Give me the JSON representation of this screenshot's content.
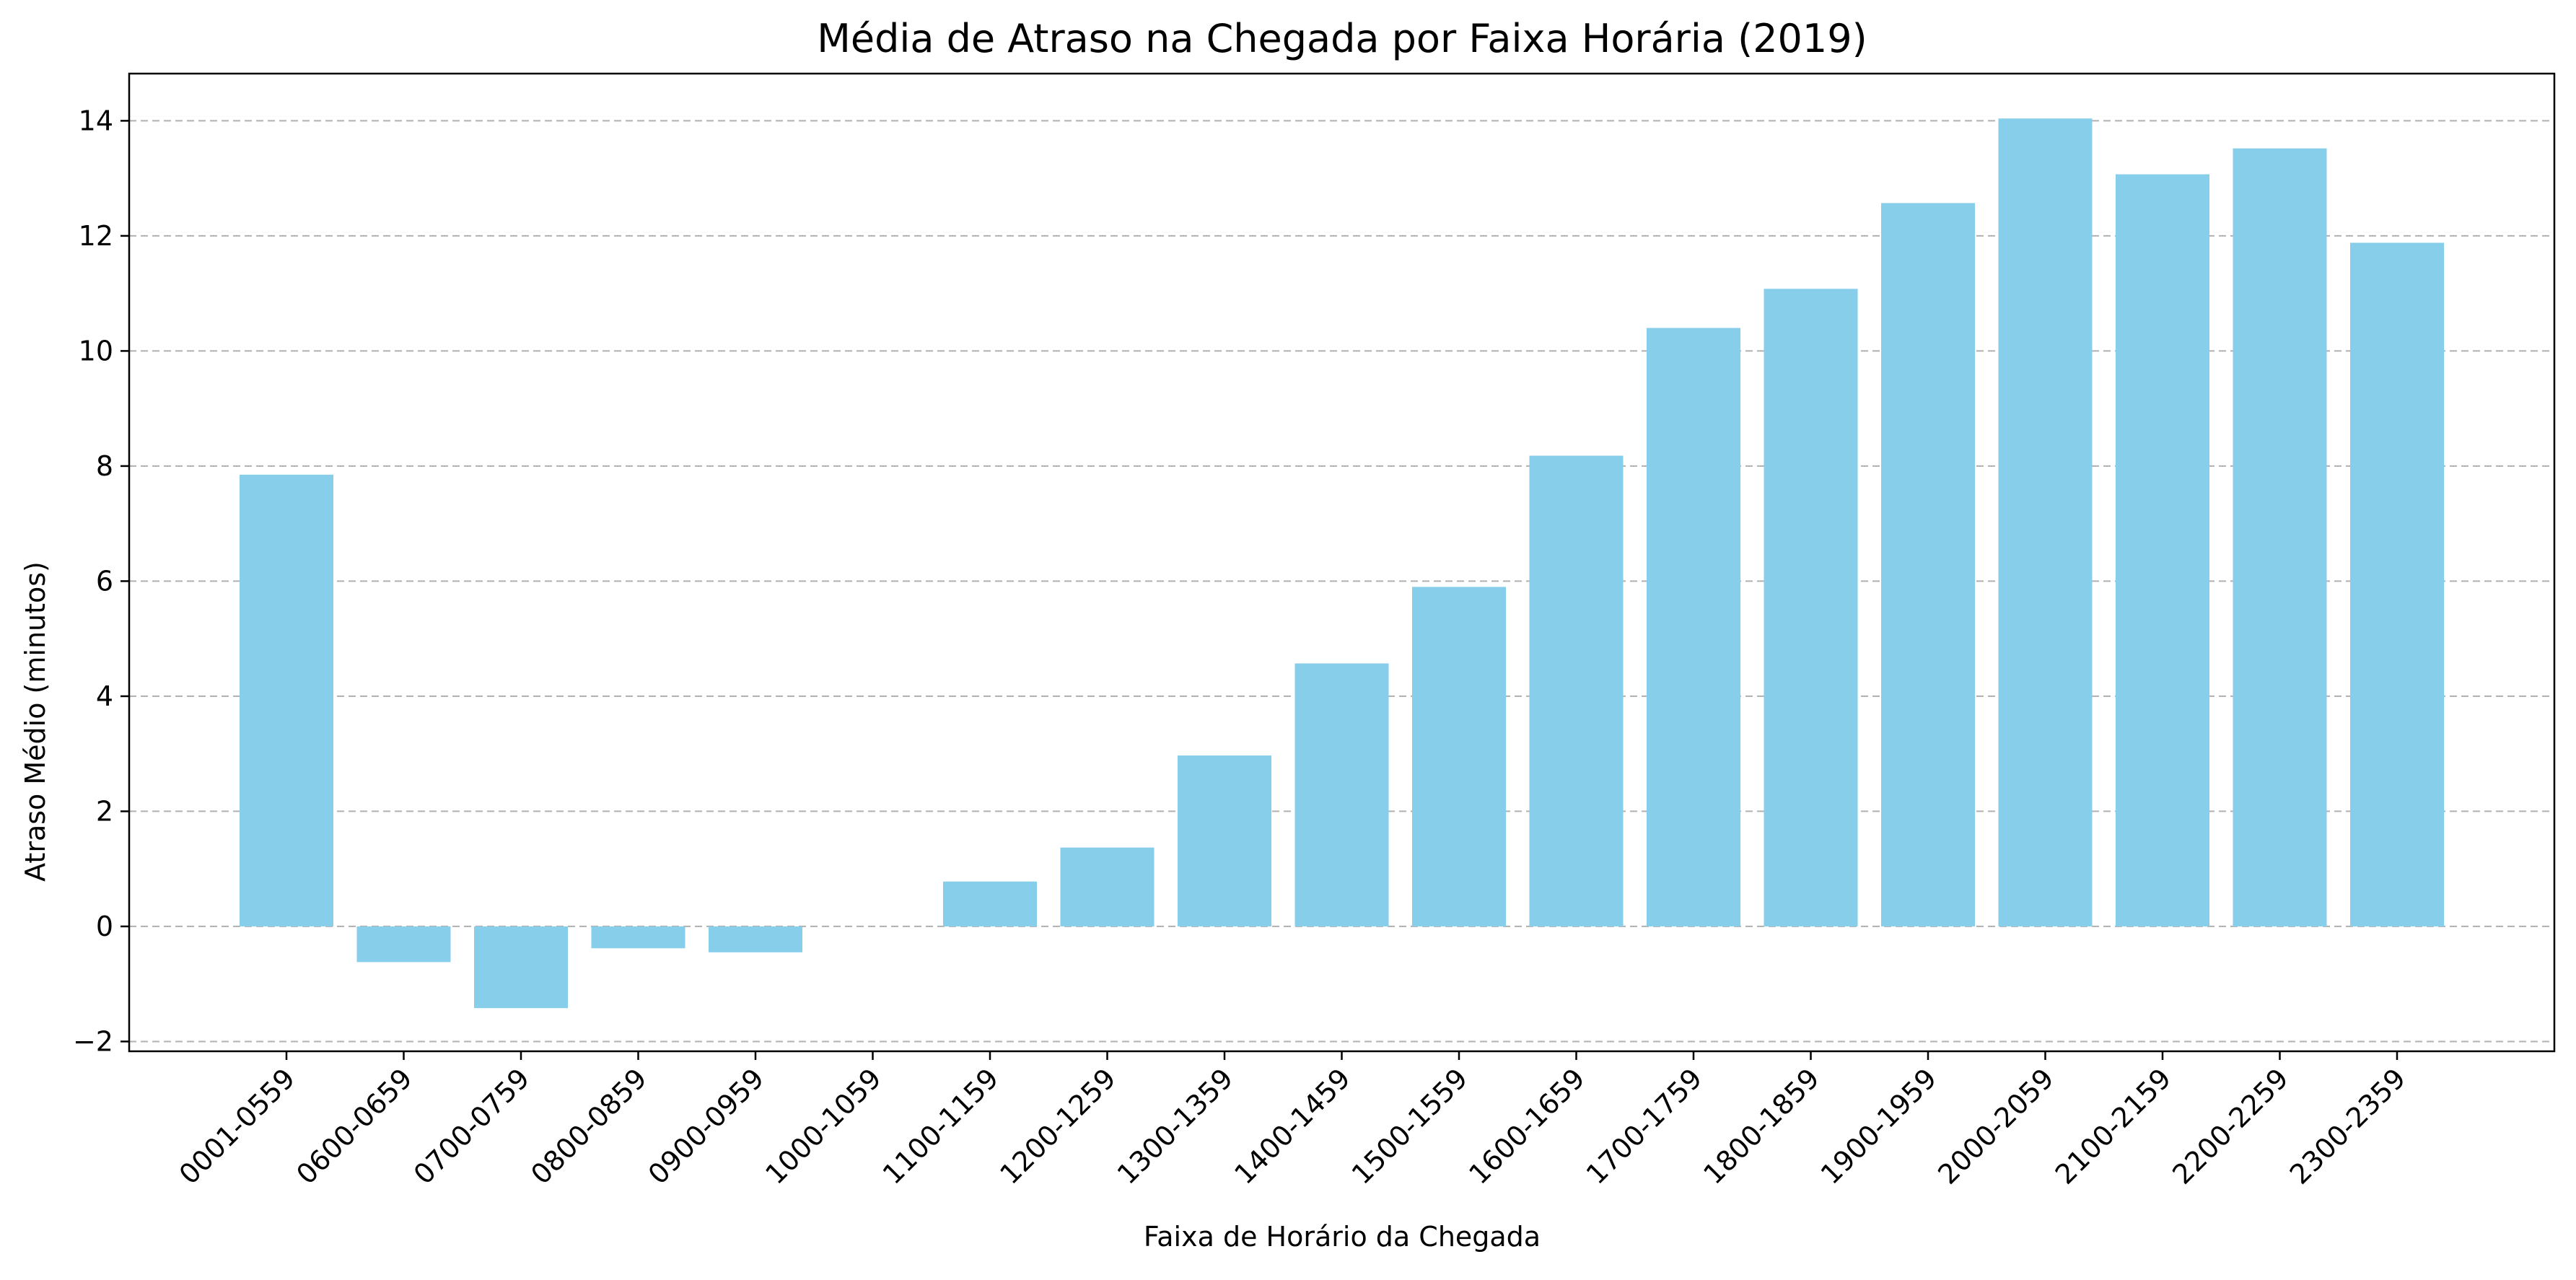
{
  "chart_data": {
    "type": "bar",
    "title": "Média de Atraso na Chegada por Faixa Horária (2019)",
    "xlabel": "Faixa de Horário da Chegada",
    "ylabel": "Atraso Médio (minutos)",
    "categories": [
      "0001-0559",
      "0600-0659",
      "0700-0759",
      "0800-0859",
      "0900-0959",
      "1000-1059",
      "1100-1159",
      "1200-1259",
      "1300-1359",
      "1400-1459",
      "1500-1559",
      "1600-1659",
      "1700-1759",
      "1800-1859",
      "1900-1959",
      "2000-2059",
      "2100-2159",
      "2200-2259",
      "2300-2359"
    ],
    "values": [
      7.85,
      -0.62,
      -1.42,
      -0.38,
      -0.45,
      0.0,
      0.78,
      1.37,
      2.97,
      4.57,
      5.9,
      8.18,
      10.4,
      11.08,
      12.57,
      14.04,
      13.07,
      13.52,
      11.88
    ],
    "ylim": [
      -2.17,
      14.82
    ],
    "yticks": [
      -2,
      0,
      2,
      4,
      6,
      8,
      10,
      12,
      14
    ],
    "ytick_labels": [
      "−2",
      "0",
      "2",
      "4",
      "6",
      "8",
      "10",
      "12",
      "14"
    ],
    "grid": "y-dashed",
    "legend": "none",
    "colors": {
      "bar": "#87ceeb",
      "grid": "#b0b0b0",
      "axis": "#000000"
    }
  }
}
